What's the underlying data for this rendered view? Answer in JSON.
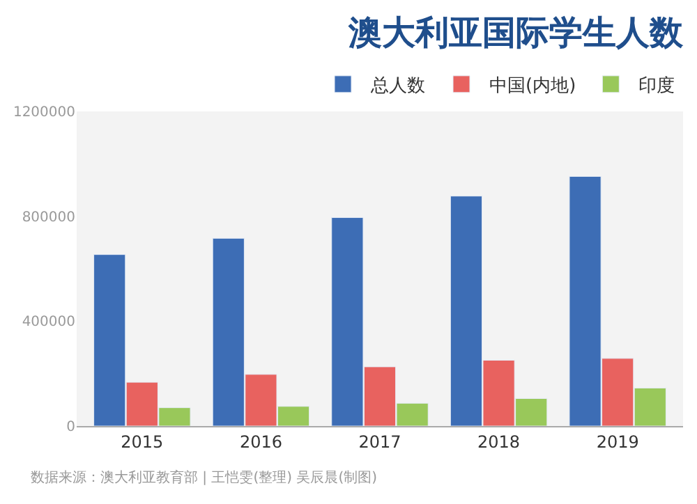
{
  "chart_data": {
    "type": "bar",
    "title": "澳大利亚国际学生人数",
    "categories": [
      "2015",
      "2016",
      "2017",
      "2018",
      "2019"
    ],
    "series": [
      {
        "name": "总人数",
        "color": "#3d6db5",
        "values": [
          654000,
          716000,
          795000,
          877000,
          952000
        ]
      },
      {
        "name": "中国(内地)",
        "color": "#e8625f",
        "values": [
          167000,
          197000,
          226000,
          251000,
          258000
        ]
      },
      {
        "name": "印度",
        "color": "#99c85a",
        "values": [
          70000,
          75000,
          87000,
          105000,
          145000
        ]
      }
    ],
    "ylim": [
      0,
      1200000
    ],
    "yticks": [
      0,
      400000,
      800000,
      1200000
    ],
    "grid": false,
    "legend": "top right",
    "annotations": [
      "数据来源：澳大利亚教育部 | 王恺雯(整理) 吴辰晨(制图)"
    ]
  }
}
